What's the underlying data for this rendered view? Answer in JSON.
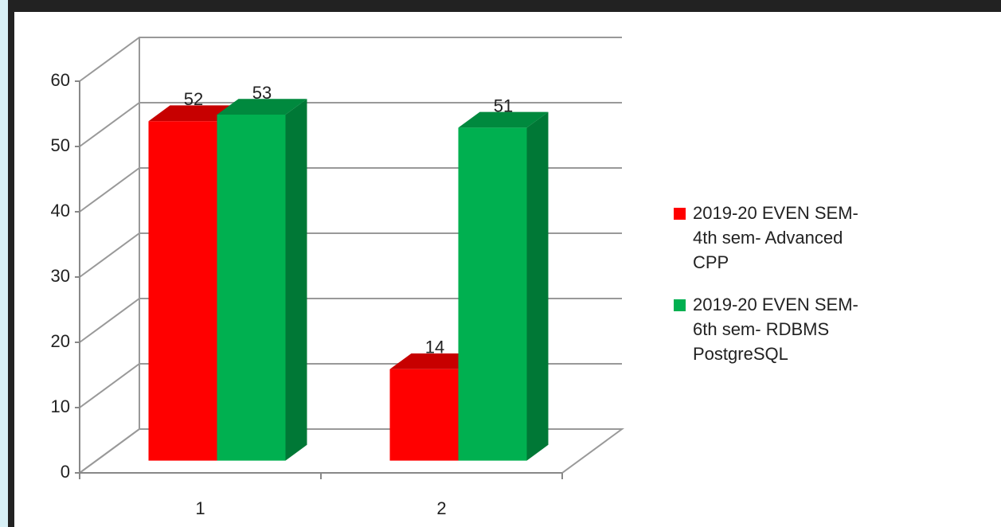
{
  "chart_data": {
    "type": "bar3d",
    "categories": [
      "1",
      "2"
    ],
    "series": [
      {
        "name": "2019-20 EVEN SEM- 4th sem- Advanced CPP",
        "color": "#ff0000",
        "values": [
          52,
          14
        ]
      },
      {
        "name": "2019-20 EVEN SEM- 6th sem- RDBMS PostgreSQL",
        "color": "#00b050",
        "values": [
          53,
          51
        ]
      }
    ],
    "ylim": [
      0,
      60
    ],
    "yticks": [
      0,
      10,
      20,
      30,
      40,
      50,
      60
    ],
    "grid": true,
    "legend": "right"
  }
}
